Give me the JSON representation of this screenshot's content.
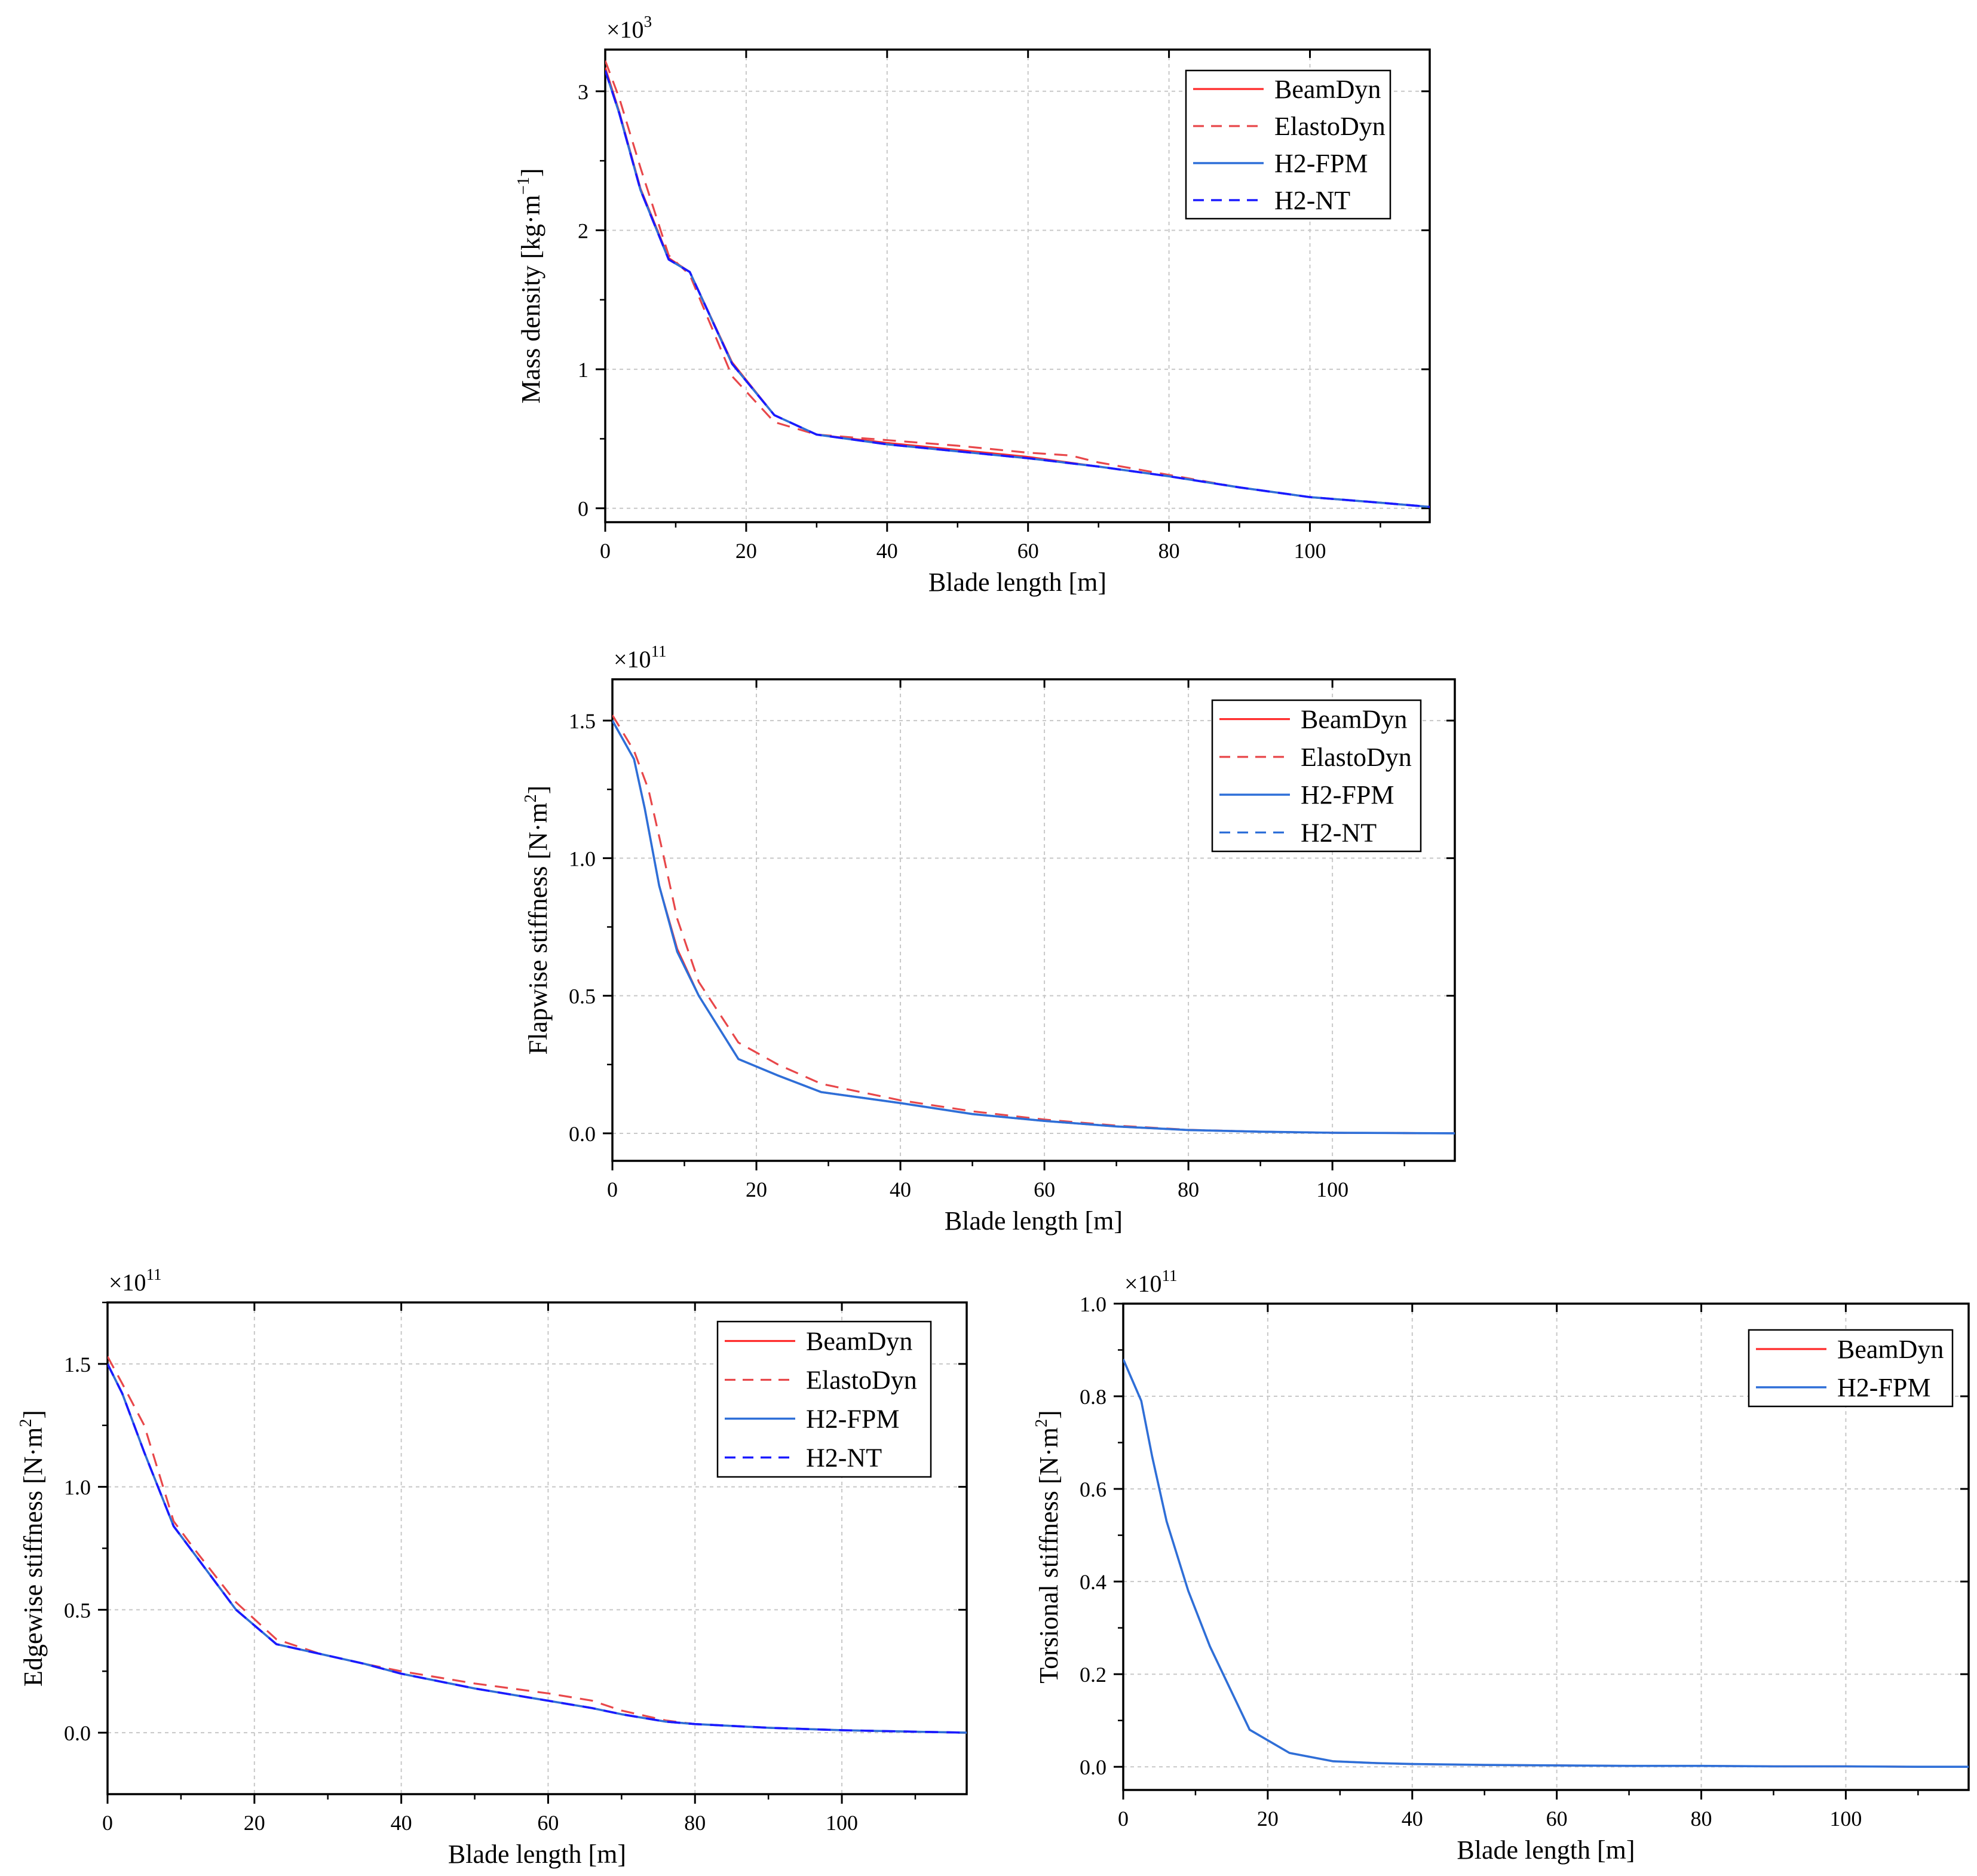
{
  "colors": {
    "beamdyn": "#ff2a2a",
    "elastodyn": "#e8474a",
    "h2fpm": "#2e6fd8",
    "h2nt": "#1a1aff",
    "axis": "#000000",
    "grid": "#c8c8c8",
    "background": "#ffffff"
  },
  "chart_data": [
    {
      "id": "mass",
      "type": "line",
      "title": "",
      "xlabel": "Blade length [m]",
      "ylabel": "Mass density [kg·m⁻¹]",
      "ylabel_main": "Mass density [kg·m",
      "ylabel_sup": "−1",
      "ylabel_end": "]",
      "multiplier_base": "×10",
      "multiplier_exp": "3",
      "xlim": [
        0,
        117
      ],
      "ylim": [
        -0.1,
        3.3
      ],
      "xticks": [
        0,
        20,
        40,
        60,
        80,
        100
      ],
      "xtick_labels": [
        "0",
        "20",
        "40",
        "60",
        "80",
        "100"
      ],
      "yticks": [
        0,
        1,
        2,
        3
      ],
      "ytick_labels": [
        "0",
        "1",
        "2",
        "3"
      ],
      "legend_position": "top-right",
      "series": [
        {
          "name": "BeamDyn",
          "style": "solid-red",
          "x": [
            0,
            2,
            5,
            9,
            12,
            18,
            24,
            30,
            40,
            50,
            60,
            70,
            80,
            90,
            100,
            110,
            117
          ],
          "y": [
            3.17,
            2.85,
            2.3,
            1.8,
            1.7,
            1.05,
            0.67,
            0.53,
            0.47,
            0.42,
            0.37,
            0.3,
            0.23,
            0.15,
            0.08,
            0.04,
            0.01
          ]
        },
        {
          "name": "ElastoDyn",
          "style": "dashed-red",
          "x": [
            0,
            2,
            5,
            9,
            12,
            18,
            24,
            30,
            40,
            50,
            60,
            66,
            70,
            80,
            90,
            100,
            110,
            117
          ],
          "y": [
            3.22,
            2.95,
            2.45,
            1.82,
            1.68,
            0.95,
            0.62,
            0.53,
            0.49,
            0.45,
            0.4,
            0.38,
            0.33,
            0.24,
            0.15,
            0.08,
            0.04,
            0.01
          ]
        },
        {
          "name": "H2-FPM",
          "style": "solid-blue",
          "x": [
            0,
            2,
            5,
            9,
            12,
            18,
            24,
            30,
            40,
            50,
            60,
            70,
            80,
            90,
            100,
            110,
            117
          ],
          "y": [
            3.15,
            2.84,
            2.29,
            1.79,
            1.7,
            1.04,
            0.67,
            0.53,
            0.46,
            0.41,
            0.36,
            0.3,
            0.23,
            0.15,
            0.08,
            0.04,
            0.01
          ]
        },
        {
          "name": "H2-NT",
          "style": "dashed-navy",
          "x": [
            0,
            2,
            5,
            9,
            12,
            18,
            24,
            30,
            40,
            50,
            60,
            70,
            80,
            90,
            100,
            110,
            117
          ],
          "y": [
            3.15,
            2.84,
            2.29,
            1.79,
            1.7,
            1.04,
            0.67,
            0.53,
            0.46,
            0.41,
            0.36,
            0.3,
            0.23,
            0.15,
            0.08,
            0.04,
            0.01
          ]
        }
      ]
    },
    {
      "id": "flap",
      "type": "line",
      "title": "",
      "xlabel": "Blade length [m]",
      "ylabel": "Flapwise stiffness [N·m²]",
      "ylabel_main": "Flapwise stiffness [N·m",
      "ylabel_sup": "2",
      "ylabel_end": "]",
      "multiplier_base": "×10",
      "multiplier_exp": "11",
      "xlim": [
        0,
        117
      ],
      "ylim": [
        -0.1,
        1.65
      ],
      "xticks": [
        0,
        20,
        40,
        60,
        80,
        100
      ],
      "xtick_labels": [
        "0",
        "20",
        "40",
        "60",
        "80",
        "100"
      ],
      "yticks": [
        0,
        0.5,
        1.0,
        1.5
      ],
      "ytick_labels": [
        "0.0",
        "0.5",
        "1.0",
        "1.5"
      ],
      "legend_position": "top-right",
      "series": [
        {
          "name": "BeamDyn",
          "style": "solid-red",
          "x": [
            0,
            3,
            4.5,
            6.5,
            9,
            12,
            17.5,
            23,
            29,
            40,
            50,
            60,
            70,
            80,
            90,
            100,
            110,
            117
          ],
          "y": [
            1.5,
            1.36,
            1.18,
            0.9,
            0.67,
            0.5,
            0.27,
            0.21,
            0.15,
            0.11,
            0.07,
            0.045,
            0.025,
            0.012,
            0.006,
            0.002,
            0.001,
            0.0
          ]
        },
        {
          "name": "ElastoDyn",
          "style": "dashed-red",
          "x": [
            0,
            3,
            5,
            7,
            9,
            12,
            17.5,
            23,
            29,
            40,
            50,
            60,
            70,
            80,
            90,
            100,
            110,
            117
          ],
          "y": [
            1.52,
            1.39,
            1.25,
            1.02,
            0.78,
            0.55,
            0.33,
            0.25,
            0.18,
            0.12,
            0.08,
            0.05,
            0.028,
            0.013,
            0.006,
            0.002,
            0.001,
            0.0
          ]
        },
        {
          "name": "H2-FPM",
          "style": "solid-blue",
          "x": [
            0,
            3,
            4.5,
            6.5,
            9,
            12,
            17.5,
            23,
            29,
            40,
            50,
            60,
            70,
            80,
            90,
            100,
            110,
            117
          ],
          "y": [
            1.5,
            1.36,
            1.18,
            0.9,
            0.66,
            0.5,
            0.27,
            0.21,
            0.15,
            0.11,
            0.07,
            0.045,
            0.025,
            0.012,
            0.006,
            0.002,
            0.001,
            0.0
          ]
        },
        {
          "name": "H2-NT",
          "style": "dashed-blue",
          "x": [
            0,
            3,
            4.5,
            6.5,
            9,
            12,
            17.5,
            23,
            29,
            40,
            50,
            60,
            70,
            80,
            90,
            100,
            110,
            117
          ],
          "y": [
            1.5,
            1.36,
            1.18,
            0.9,
            0.66,
            0.5,
            0.27,
            0.21,
            0.15,
            0.11,
            0.07,
            0.045,
            0.025,
            0.012,
            0.006,
            0.002,
            0.001,
            0.0
          ]
        }
      ]
    },
    {
      "id": "edge",
      "type": "line",
      "title": "",
      "xlabel": "Blade length [m]",
      "ylabel": "Edgewise stiffness [N·m²]",
      "ylabel_main": "Edgewise stiffness [N·m",
      "ylabel_sup": "2",
      "ylabel_end": "]",
      "multiplier_base": "×10",
      "multiplier_exp": "11",
      "xlim": [
        0,
        117
      ],
      "ylim": [
        -0.25,
        1.75
      ],
      "xticks": [
        0,
        20,
        40,
        60,
        80,
        100
      ],
      "xtick_labels": [
        "0",
        "20",
        "40",
        "60",
        "80",
        "100"
      ],
      "yticks": [
        0,
        0.5,
        1.0,
        1.5
      ],
      "ytick_labels": [
        "0.0",
        "0.5",
        "1.0",
        "1.5"
      ],
      "legend_position": "top-right",
      "series": [
        {
          "name": "BeamDyn",
          "style": "solid-red",
          "x": [
            0,
            2,
            5,
            9,
            12,
            17.5,
            23,
            29,
            35,
            40,
            50,
            60,
            66,
            70,
            76,
            80,
            90,
            100,
            110,
            117
          ],
          "y": [
            1.5,
            1.38,
            1.14,
            0.84,
            0.72,
            0.5,
            0.36,
            0.32,
            0.28,
            0.24,
            0.18,
            0.13,
            0.1,
            0.075,
            0.045,
            0.035,
            0.02,
            0.01,
            0.004,
            0.0
          ]
        },
        {
          "name": "ElastoDyn",
          "style": "dashed-red",
          "x": [
            0,
            2,
            5,
            9,
            12,
            17.5,
            23,
            29,
            35,
            40,
            50,
            60,
            66,
            70,
            76,
            80,
            90,
            100,
            110,
            117
          ],
          "y": [
            1.53,
            1.42,
            1.25,
            0.86,
            0.74,
            0.53,
            0.38,
            0.32,
            0.28,
            0.25,
            0.2,
            0.16,
            0.13,
            0.09,
            0.05,
            0.035,
            0.02,
            0.01,
            0.004,
            0.0
          ]
        },
        {
          "name": "H2-FPM",
          "style": "solid-blue",
          "x": [
            0,
            2,
            5,
            9,
            12,
            17.5,
            23,
            29,
            35,
            40,
            50,
            60,
            66,
            70,
            76,
            80,
            90,
            100,
            110,
            117
          ],
          "y": [
            1.5,
            1.38,
            1.14,
            0.84,
            0.72,
            0.5,
            0.36,
            0.32,
            0.28,
            0.24,
            0.18,
            0.13,
            0.1,
            0.075,
            0.045,
            0.035,
            0.02,
            0.01,
            0.004,
            0.0
          ]
        },
        {
          "name": "H2-NT",
          "style": "dashed-navy",
          "x": [
            0,
            2,
            5,
            9,
            12,
            17.5,
            23,
            29,
            35,
            40,
            50,
            60,
            66,
            70,
            76,
            80,
            90,
            100,
            110,
            117
          ],
          "y": [
            1.5,
            1.38,
            1.14,
            0.84,
            0.72,
            0.5,
            0.36,
            0.32,
            0.28,
            0.24,
            0.18,
            0.13,
            0.1,
            0.075,
            0.045,
            0.035,
            0.02,
            0.01,
            0.004,
            0.0
          ]
        }
      ]
    },
    {
      "id": "tors",
      "type": "line",
      "title": "",
      "xlabel": "Blade length [m]",
      "ylabel": "Torsional stiffness [N·m²]",
      "ylabel_main": "Torsional stiffness [N·m",
      "ylabel_sup": "2",
      "ylabel_end": "]",
      "multiplier_base": "×10",
      "multiplier_exp": "11",
      "xlim": [
        0,
        117
      ],
      "ylim": [
        -0.05,
        1.0
      ],
      "xticks": [
        0,
        20,
        40,
        60,
        80,
        100
      ],
      "xtick_labels": [
        "0",
        "20",
        "40",
        "60",
        "80",
        "100"
      ],
      "yticks": [
        0,
        0.2,
        0.4,
        0.6,
        0.8,
        1.0
      ],
      "ytick_labels": [
        "0.0",
        "0.2",
        "0.4",
        "0.6",
        "0.8",
        "1.0"
      ],
      "legend_position": "top-right",
      "series": [
        {
          "name": "BeamDyn",
          "style": "solid-red",
          "x": [
            0,
            2.5,
            4,
            6,
            9,
            12,
            17.5,
            23,
            29,
            35,
            40,
            50,
            60,
            70,
            80,
            90,
            100,
            110,
            117
          ],
          "y": [
            0.88,
            0.79,
            0.67,
            0.53,
            0.38,
            0.26,
            0.08,
            0.03,
            0.012,
            0.008,
            0.006,
            0.004,
            0.003,
            0.002,
            0.002,
            0.001,
            0.001,
            0.0,
            0.0
          ]
        },
        {
          "name": "H2-FPM",
          "style": "solid-blue",
          "x": [
            0,
            2.5,
            4,
            6,
            9,
            12,
            17.5,
            23,
            29,
            35,
            40,
            50,
            60,
            70,
            80,
            90,
            100,
            110,
            117
          ],
          "y": [
            0.88,
            0.79,
            0.67,
            0.53,
            0.38,
            0.26,
            0.08,
            0.03,
            0.012,
            0.008,
            0.006,
            0.004,
            0.003,
            0.002,
            0.002,
            0.001,
            0.001,
            0.0,
            0.0
          ]
        }
      ]
    }
  ]
}
